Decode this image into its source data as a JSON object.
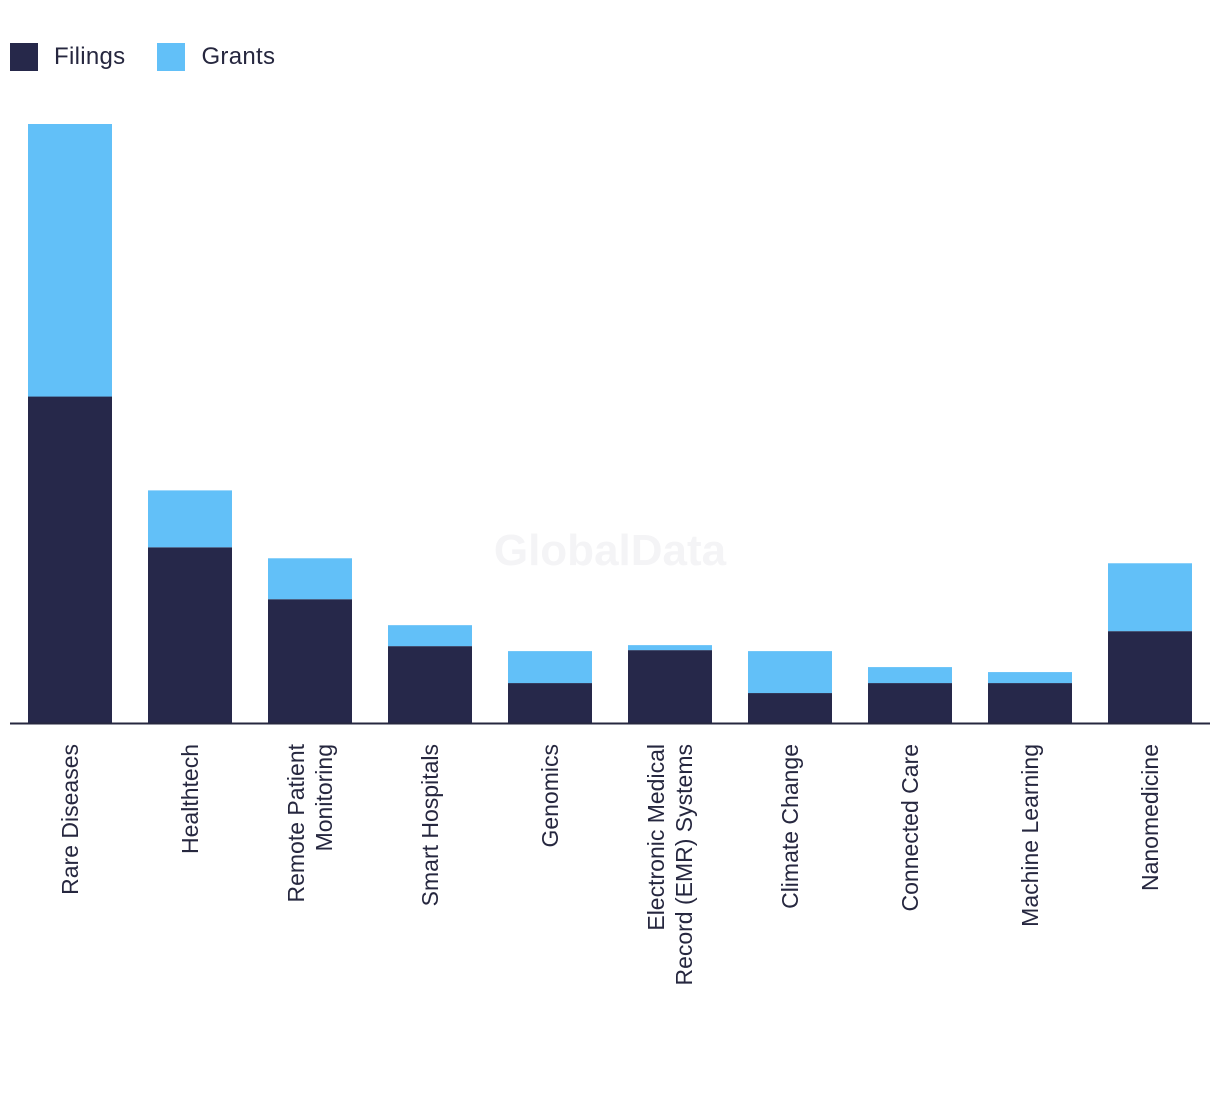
{
  "legend": {
    "filings_label": "Filings",
    "grants_label": "Grants"
  },
  "colors": {
    "filings": "#26284a",
    "grants": "#62c0f8",
    "axis": "#26273f",
    "text": "#26273f"
  },
  "watermark": "GlobalData",
  "chart_data": {
    "type": "bar",
    "stacked": true,
    "categories": [
      "Rare Diseases",
      "Healthtech",
      "Remote Patient Monitoring",
      "Smart Hospitals",
      "Genomics",
      "Electronic Medical Record (EMR) Systems",
      "Climate Change",
      "Connected Care",
      "Machine Learning",
      "Nanomedicine"
    ],
    "series": [
      {
        "name": "Filings",
        "values": [
          327,
          176,
          124,
          77,
          40,
          73,
          30,
          40,
          40,
          92
        ]
      },
      {
        "name": "Grants",
        "values": [
          273,
          57,
          41,
          21,
          32,
          5,
          42,
          16,
          11,
          68
        ]
      }
    ],
    "ylim": [
      0,
      600
    ],
    "grid": false,
    "legend_position": "top-left"
  }
}
